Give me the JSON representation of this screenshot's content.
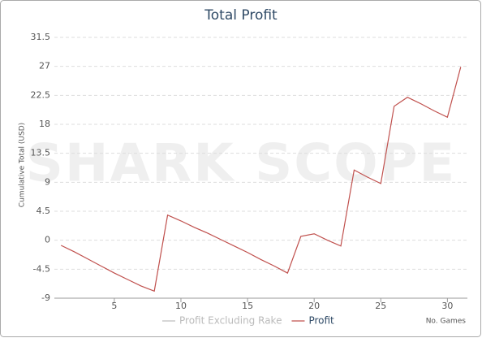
{
  "chart_data": {
    "type": "line",
    "title": "Total Profit",
    "watermark": "SHARK SCOPE",
    "x_label": "No. Games",
    "y_label": "Cumulative Total (USD)",
    "x": [
      1,
      2,
      3,
      4,
      5,
      6,
      7,
      8,
      9,
      10,
      11,
      12,
      13,
      14,
      15,
      16,
      17,
      18,
      19,
      20,
      21,
      22,
      23,
      24,
      25,
      26,
      27,
      28,
      29,
      30,
      31
    ],
    "series": [
      {
        "name": "Profit Excluding Rake",
        "color": "#bbbbbb",
        "visible": false
      },
      {
        "name": "Profit",
        "color": "#c0504d",
        "visible": true,
        "values": [
          -0.8,
          -1.8,
          -2.9,
          -4,
          -5.1,
          -6.1,
          -7.1,
          -7.9,
          3.9,
          3,
          2,
          1.1,
          0.1,
          -0.9,
          -1.9,
          -3,
          -4,
          -5.1,
          0.6,
          1,
          0,
          -0.9,
          10.9,
          9.8,
          8.8,
          20.8,
          22.2,
          21.2,
          20.1,
          19.1,
          26.9
        ]
      }
    ],
    "xlim": [
      0.5,
      31.5
    ],
    "xticks": [
      5,
      10,
      15,
      20,
      25,
      30
    ],
    "ylim": [
      -9,
      31.5
    ],
    "yticks": [
      -9,
      -4.5,
      0,
      4.5,
      9,
      13.5,
      18,
      22.5,
      27,
      31.5
    ],
    "grid": true
  }
}
